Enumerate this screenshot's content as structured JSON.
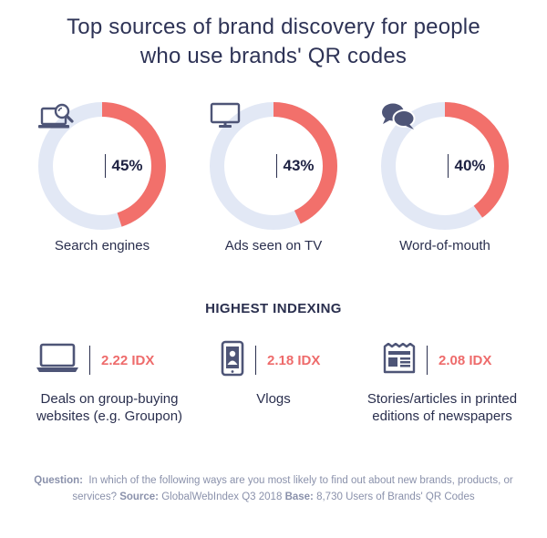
{
  "title_line1": "Top sources of brand discovery for people",
  "title_line2": "who use brands' QR codes",
  "colors": {
    "accent": "#f2706b",
    "track": "#e2e8f5",
    "text": "#2a2f4e",
    "icon": "#4e5577"
  },
  "chart_data": {
    "type": "pie",
    "categories": [
      "Search engines",
      "Ads seen on TV",
      "Word-of-mouth"
    ],
    "values": [
      45,
      43,
      40
    ],
    "value_labels": [
      "45%",
      "43%",
      "40%"
    ],
    "icons": [
      "laptop-search-icon",
      "tv-icon",
      "speech-bubbles-icon"
    ]
  },
  "highest_indexing": {
    "heading": "HIGHEST INDEXING",
    "items": [
      {
        "value": "2.22 IDX",
        "icon": "laptop-icon",
        "line1": "Deals on group-buying",
        "line2": "websites (e.g. Groupon)"
      },
      {
        "value": "2.18 IDX",
        "icon": "smartphone-user-icon",
        "line1": "Vlogs",
        "line2": ""
      },
      {
        "value": "2.08 IDX",
        "icon": "newspaper-icon",
        "line1": "Stories/articles in printed",
        "line2": "editions of newspapers"
      }
    ]
  },
  "footnote": {
    "question_label": "Question:",
    "question_text": "In which of the following ways are you most likely to find out about new brands, products, or services?",
    "source_label": "Source:",
    "source_text": "GlobalWebIndex Q3 2018",
    "base_label": "Base:",
    "base_text": "8,730 Users of Brands' QR Codes"
  }
}
